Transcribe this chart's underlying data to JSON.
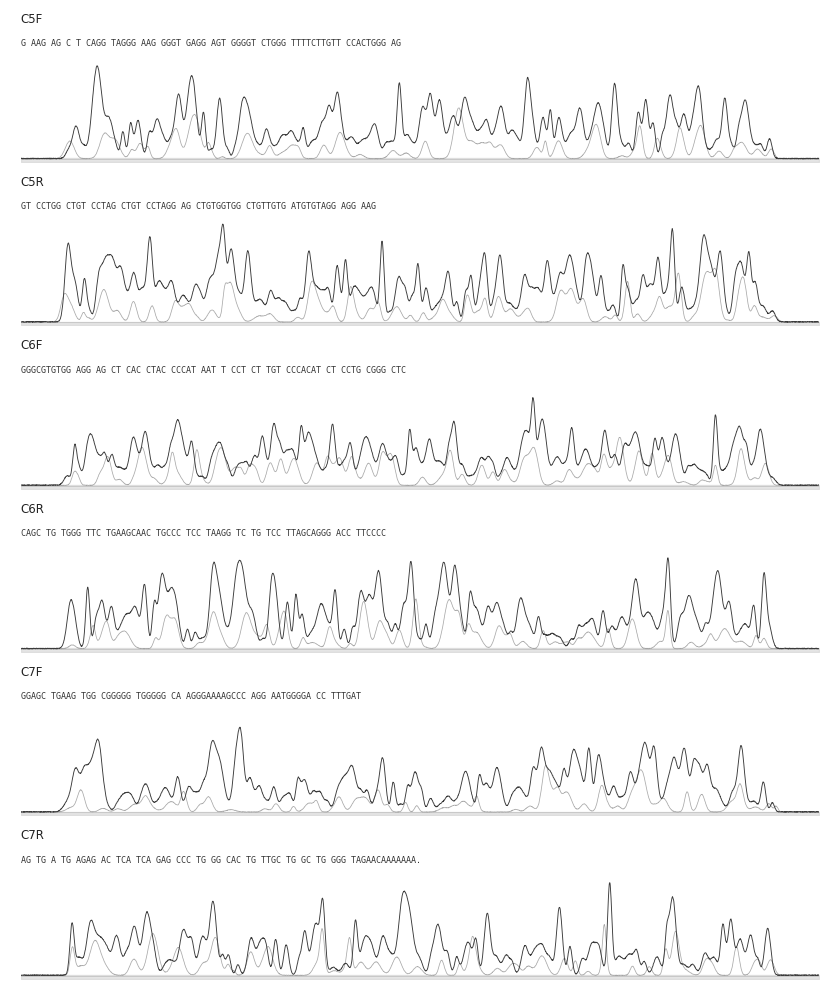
{
  "panels": [
    {
      "label": "C5F",
      "sequence": "G AAG AG C T CAGG TAGGG AAG GGGT GAGG AGT GGGGT CTGGG TTTTCTTGTT CCACTGGG AG",
      "peak_density": 90,
      "amplitude": 0.9,
      "seed": 1
    },
    {
      "label": "C5R",
      "sequence": "GT CCTGG CTGT CCTAG CTGT CCTAGG AG CTGTGGTGG CTGTTGTG ATGTGTAGG AGG AAG",
      "peak_density": 95,
      "amplitude": 0.95,
      "seed": 2
    },
    {
      "label": "C6F",
      "sequence": "GGGCGTGTGG AGG AG CT CAC CTAC CCCAT AAT T CCT CT TGT CCCACAT CT CCTG CGGG CTC",
      "peak_density": 110,
      "amplitude": 0.85,
      "seed": 3
    },
    {
      "label": "C6R",
      "sequence": "CAGC TG TGGG TTC TGAAGCAAC TGCCC TCC TAAGG TC TG TCC TTAGCAGGG ACC TTCCCC",
      "peak_density": 85,
      "amplitude": 0.88,
      "seed": 4
    },
    {
      "label": "C7F",
      "sequence": "GGAGC TGAAG TGG CGGGGG TGGGGG CA AGGGAAAAGCCC AGG AATGGGGA CC TTTGAT",
      "peak_density": 90,
      "amplitude": 0.82,
      "seed": 5
    },
    {
      "label": "C7R",
      "sequence": "AG TG A TG AGAG AC TCA TCA GAG CCC TG GG CAC TG TTGC TG GC TG GGG TAGAACAAAAAAA.",
      "peak_density": 75,
      "amplitude": 0.9,
      "seed": 6
    }
  ],
  "fig_width": 8.31,
  "fig_height": 10.0,
  "dpi": 100,
  "bg_color": "#ffffff",
  "trace_color_dark": "#3a3a3a",
  "trace_color_gray": "#9a9a9a",
  "trace_color_light": "#bbbbbb",
  "label_fontsize": 8.5,
  "seq_fontsize": 6.0,
  "label_color": "#222222",
  "baseline_color": "#aaaaaa"
}
